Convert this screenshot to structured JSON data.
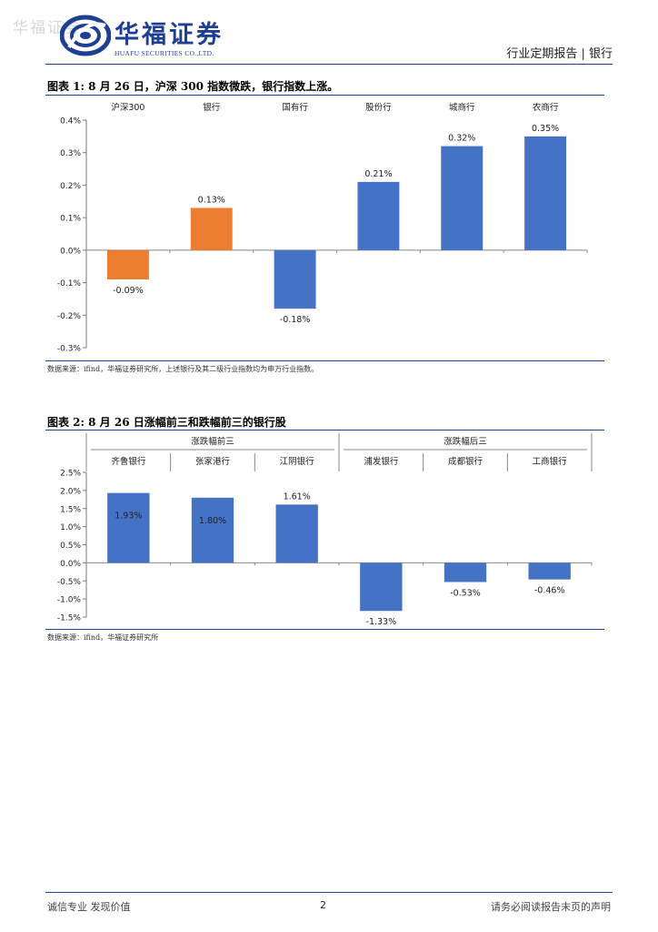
{
  "header": {
    "watermark": "华福证券",
    "logo_cn": "华福证券",
    "logo_en": "HUAFU SECURITIES CO.,LTD.",
    "report_type": "行业定期报告 | 银行"
  },
  "figure1": {
    "title": "图表 1:  8 月 26 日，沪深 300 指数微跌，银行指数上涨。",
    "source": "数据来源：ifind，华福证券研究所，上述银行及其二级行业指数均为申万行业指数。",
    "chart_data": {
      "type": "bar",
      "categories": [
        "沪深300",
        "银行",
        "国有行",
        "股份行",
        "城商行",
        "农商行"
      ],
      "values": [
        -0.09,
        0.13,
        -0.18,
        0.21,
        0.32,
        0.35
      ],
      "value_labels": [
        "-0.09%",
        "0.13%",
        "-0.18%",
        "0.21%",
        "0.32%",
        "0.35%"
      ],
      "colors": [
        "#ED7D31",
        "#ED7D31",
        "#4472C4",
        "#4472C4",
        "#4472C4",
        "#4472C4"
      ],
      "ylim": [
        -0.3,
        0.4
      ],
      "yticks": [
        0.4,
        0.3,
        0.2,
        0.1,
        0.0,
        -0.1,
        -0.2,
        -0.3
      ],
      "ytick_labels": [
        "0.4%",
        "0.3%",
        "0.2%",
        "0.1%",
        "0.0%",
        "-0.1%",
        "-0.2%",
        "-0.3%"
      ],
      "unit": "%",
      "category_position": "top",
      "title": "",
      "xlabel": "",
      "ylabel": ""
    }
  },
  "figure2": {
    "title": "图表 2:  8 月 26 日涨幅前三和跌幅前三的银行股",
    "source": "数据来源：ifind，华福证券研究所",
    "chart_data": {
      "type": "bar",
      "groups": [
        {
          "name": "涨跌幅前三",
          "categories": [
            "齐鲁银行",
            "张家港行",
            "江阴银行"
          ]
        },
        {
          "name": "涨跌幅后三",
          "categories": [
            "浦发银行",
            "成都银行",
            "工商银行"
          ]
        }
      ],
      "categories": [
        "齐鲁银行",
        "张家港行",
        "江阴银行",
        "浦发银行",
        "成都银行",
        "工商银行"
      ],
      "values": [
        1.93,
        1.8,
        1.61,
        -1.33,
        -0.53,
        -0.46
      ],
      "value_labels": [
        "1.93%",
        "1.80%",
        "1.61%",
        "-1.33%",
        "-0.53%",
        "-0.46%"
      ],
      "colors": [
        "#4472C4",
        "#4472C4",
        "#4472C4",
        "#4472C4",
        "#4472C4",
        "#4472C4"
      ],
      "ylim": [
        -1.5,
        2.5
      ],
      "yticks": [
        2.5,
        2.0,
        1.5,
        1.0,
        0.5,
        0.0,
        -0.5,
        -1.0,
        -1.5
      ],
      "ytick_labels": [
        "2.5%",
        "2.0%",
        "1.5%",
        "1.0%",
        "0.5%",
        "0.0%",
        "-0.5%",
        "-1.0%",
        "-1.5%"
      ],
      "unit": "%",
      "title": "",
      "xlabel": "",
      "ylabel": ""
    }
  },
  "footer": {
    "left": "诚信专业  发现价值",
    "page": "2",
    "right": "请务必阅读报告末页的声明"
  }
}
